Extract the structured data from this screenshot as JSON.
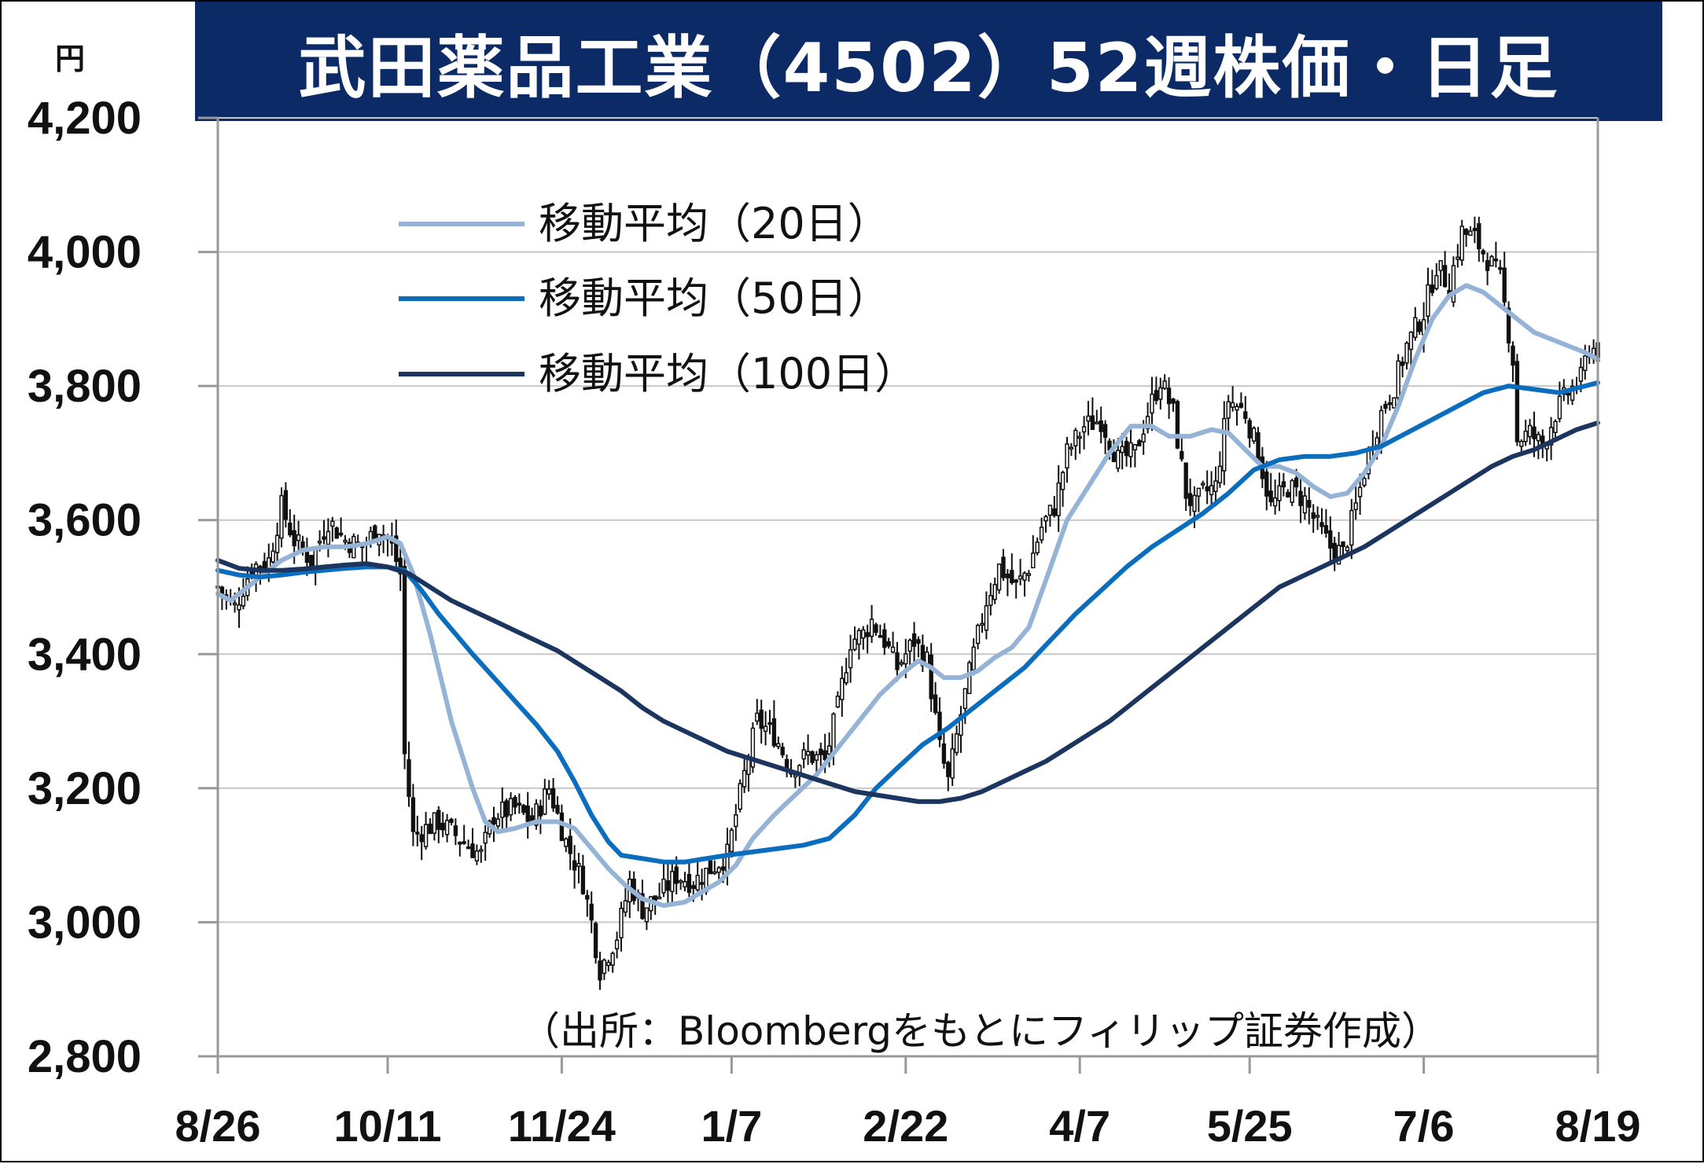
{
  "title": "武田薬品工業（4502）52週株価・日足",
  "chart_data": {
    "type": "candlestick",
    "title": "武田薬品工業（4502）52週株価・日足",
    "unit_label": "円",
    "ylim": [
      2800,
      4200
    ],
    "yticks": [
      2800,
      3000,
      3200,
      3400,
      3600,
      3800,
      4000,
      4200
    ],
    "ytick_labels": [
      "2,800",
      "3,000",
      "3,200",
      "3,400",
      "3,600",
      "3,800",
      "4,000",
      "4,200"
    ],
    "xtick_labels": [
      "8/26",
      "10/11",
      "11/24",
      "1/7",
      "2/22",
      "4/7",
      "5/25",
      "7/6",
      "8/19"
    ],
    "grid": true,
    "source": "（出所：Bloombergをもとにフィリップ証券作成）",
    "colors": {
      "title_bg": "#0c2a66",
      "grid": "#c8c8c8",
      "ma20": "#95b3d7",
      "ma50": "#0b6dbd",
      "ma100": "#1c355e",
      "candle_up": "#ffffff",
      "candle_down": "#111111"
    },
    "close_keypoints": [
      [
        0,
        3500
      ],
      [
        4,
        3470
      ],
      [
        8,
        3530
      ],
      [
        12,
        3540
      ],
      [
        15,
        3620
      ],
      [
        18,
        3570
      ],
      [
        22,
        3540
      ],
      [
        26,
        3600
      ],
      [
        30,
        3570
      ],
      [
        34,
        3560
      ],
      [
        38,
        3590
      ],
      [
        41,
        3560
      ],
      [
        43,
        3520
      ],
      [
        44,
        3250
      ],
      [
        46,
        3130
      ],
      [
        52,
        3150
      ],
      [
        58,
        3120
      ],
      [
        62,
        3100
      ],
      [
        65,
        3160
      ],
      [
        70,
        3170
      ],
      [
        74,
        3150
      ],
      [
        78,
        3200
      ],
      [
        82,
        3120
      ],
      [
        86,
        3060
      ],
      [
        88,
        3000
      ],
      [
        90,
        2930
      ],
      [
        94,
        2980
      ],
      [
        97,
        3060
      ],
      [
        100,
        3020
      ],
      [
        104,
        3040
      ],
      [
        108,
        3070
      ],
      [
        112,
        3060
      ],
      [
        116,
        3080
      ],
      [
        120,
        3100
      ],
      [
        124,
        3220
      ],
      [
        127,
        3300
      ],
      [
        131,
        3280
      ],
      [
        135,
        3230
      ],
      [
        139,
        3250
      ],
      [
        143,
        3240
      ],
      [
        146,
        3320
      ],
      [
        149,
        3420
      ],
      [
        152,
        3430
      ],
      [
        154,
        3450
      ],
      [
        157,
        3420
      ],
      [
        160,
        3380
      ],
      [
        164,
        3420
      ],
      [
        167,
        3390
      ],
      [
        170,
        3260
      ],
      [
        172,
        3210
      ],
      [
        175,
        3310
      ],
      [
        178,
        3400
      ],
      [
        181,
        3480
      ],
      [
        184,
        3530
      ],
      [
        188,
        3500
      ],
      [
        191,
        3530
      ],
      [
        194,
        3590
      ],
      [
        197,
        3620
      ],
      [
        200,
        3700
      ],
      [
        204,
        3740
      ],
      [
        208,
        3750
      ],
      [
        212,
        3690
      ],
      [
        216,
        3700
      ],
      [
        219,
        3760
      ],
      [
        222,
        3810
      ],
      [
        225,
        3760
      ],
      [
        228,
        3640
      ],
      [
        230,
        3620
      ],
      [
        232,
        3640
      ],
      [
        235,
        3650
      ],
      [
        238,
        3780
      ],
      [
        242,
        3760
      ],
      [
        245,
        3700
      ],
      [
        248,
        3620
      ],
      [
        252,
        3650
      ],
      [
        256,
        3630
      ],
      [
        259,
        3590
      ],
      [
        262,
        3560
      ],
      [
        265,
        3550
      ],
      [
        268,
        3620
      ],
      [
        271,
        3700
      ],
      [
        274,
        3760
      ],
      [
        277,
        3800
      ],
      [
        280,
        3860
      ],
      [
        284,
        3910
      ],
      [
        287,
        3980
      ],
      [
        290,
        3950
      ],
      [
        293,
        4030
      ],
      [
        296,
        4020
      ],
      [
        299,
        3990
      ],
      [
        302,
        3960
      ],
      [
        305,
        3840
      ],
      [
        306,
        3720
      ],
      [
        309,
        3730
      ],
      [
        312,
        3710
      ],
      [
        315,
        3760
      ],
      [
        318,
        3790
      ],
      [
        321,
        3810
      ],
      [
        323,
        3860
      ],
      [
        325,
        3850
      ]
    ],
    "series": [
      {
        "name": "移動平均（20日）",
        "period": 20,
        "points": [
          [
            0,
            3490
          ],
          [
            3,
            3480
          ],
          [
            7,
            3500
          ],
          [
            11,
            3520
          ],
          [
            15,
            3540
          ],
          [
            20,
            3555
          ],
          [
            25,
            3560
          ],
          [
            30,
            3560
          ],
          [
            35,
            3565
          ],
          [
            40,
            3575
          ],
          [
            43,
            3565
          ],
          [
            46,
            3520
          ],
          [
            50,
            3430
          ],
          [
            55,
            3300
          ],
          [
            60,
            3200
          ],
          [
            63,
            3150
          ],
          [
            66,
            3135
          ],
          [
            70,
            3140
          ],
          [
            75,
            3150
          ],
          [
            80,
            3150
          ],
          [
            84,
            3140
          ],
          [
            88,
            3110
          ],
          [
            92,
            3080
          ],
          [
            96,
            3055
          ],
          [
            100,
            3035
          ],
          [
            105,
            3025
          ],
          [
            110,
            3030
          ],
          [
            114,
            3045
          ],
          [
            118,
            3060
          ],
          [
            122,
            3085
          ],
          [
            126,
            3125
          ],
          [
            131,
            3160
          ],
          [
            136,
            3190
          ],
          [
            141,
            3220
          ],
          [
            146,
            3260
          ],
          [
            151,
            3300
          ],
          [
            156,
            3340
          ],
          [
            161,
            3370
          ],
          [
            165,
            3390
          ],
          [
            168,
            3380
          ],
          [
            171,
            3365
          ],
          [
            175,
            3365
          ],
          [
            179,
            3375
          ],
          [
            183,
            3395
          ],
          [
            187,
            3410
          ],
          [
            191,
            3440
          ],
          [
            195,
            3510
          ],
          [
            200,
            3600
          ],
          [
            205,
            3650
          ],
          [
            210,
            3700
          ],
          [
            215,
            3740
          ],
          [
            220,
            3740
          ],
          [
            224,
            3725
          ],
          [
            229,
            3725
          ],
          [
            234,
            3735
          ],
          [
            238,
            3730
          ],
          [
            242,
            3705
          ],
          [
            246,
            3680
          ],
          [
            250,
            3680
          ],
          [
            254,
            3670
          ],
          [
            258,
            3650
          ],
          [
            262,
            3635
          ],
          [
            266,
            3640
          ],
          [
            270,
            3670
          ],
          [
            274,
            3710
          ],
          [
            278,
            3770
          ],
          [
            282,
            3840
          ],
          [
            286,
            3900
          ],
          [
            290,
            3935
          ],
          [
            294,
            3950
          ],
          [
            298,
            3940
          ],
          [
            302,
            3920
          ],
          [
            306,
            3900
          ],
          [
            310,
            3880
          ],
          [
            314,
            3870
          ],
          [
            318,
            3860
          ],
          [
            322,
            3850
          ],
          [
            325,
            3840
          ]
        ]
      },
      {
        "name": "移動平均（50日）",
        "period": 50,
        "points": [
          [
            0,
            3525
          ],
          [
            5,
            3518
          ],
          [
            10,
            3515
          ],
          [
            15,
            3518
          ],
          [
            20,
            3522
          ],
          [
            25,
            3525
          ],
          [
            30,
            3528
          ],
          [
            35,
            3530
          ],
          [
            40,
            3530
          ],
          [
            44,
            3525
          ],
          [
            48,
            3495
          ],
          [
            52,
            3460
          ],
          [
            56,
            3430
          ],
          [
            60,
            3400
          ],
          [
            65,
            3365
          ],
          [
            70,
            3330
          ],
          [
            75,
            3295
          ],
          [
            80,
            3255
          ],
          [
            84,
            3210
          ],
          [
            88,
            3160
          ],
          [
            92,
            3120
          ],
          [
            95,
            3100
          ],
          [
            100,
            3095
          ],
          [
            105,
            3090
          ],
          [
            110,
            3090
          ],
          [
            115,
            3095
          ],
          [
            120,
            3100
          ],
          [
            126,
            3105
          ],
          [
            132,
            3110
          ],
          [
            138,
            3115
          ],
          [
            144,
            3125
          ],
          [
            150,
            3160
          ],
          [
            155,
            3200
          ],
          [
            160,
            3230
          ],
          [
            166,
            3265
          ],
          [
            172,
            3290
          ],
          [
            178,
            3320
          ],
          [
            184,
            3350
          ],
          [
            190,
            3380
          ],
          [
            196,
            3420
          ],
          [
            202,
            3460
          ],
          [
            208,
            3495
          ],
          [
            214,
            3530
          ],
          [
            220,
            3560
          ],
          [
            226,
            3585
          ],
          [
            232,
            3610
          ],
          [
            238,
            3640
          ],
          [
            244,
            3675
          ],
          [
            250,
            3690
          ],
          [
            256,
            3695
          ],
          [
            262,
            3695
          ],
          [
            268,
            3700
          ],
          [
            274,
            3710
          ],
          [
            280,
            3730
          ],
          [
            286,
            3750
          ],
          [
            292,
            3770
          ],
          [
            298,
            3790
          ],
          [
            304,
            3800
          ],
          [
            310,
            3795
          ],
          [
            316,
            3790
          ],
          [
            322,
            3800
          ],
          [
            325,
            3805
          ]
        ]
      },
      {
        "name": "移動平均（100日）",
        "period": 100,
        "points": [
          [
            0,
            3540
          ],
          [
            5,
            3528
          ],
          [
            10,
            3525
          ],
          [
            15,
            3525
          ],
          [
            20,
            3527
          ],
          [
            25,
            3530
          ],
          [
            30,
            3533
          ],
          [
            35,
            3535
          ],
          [
            40,
            3530
          ],
          [
            45,
            3520
          ],
          [
            50,
            3500
          ],
          [
            55,
            3480
          ],
          [
            60,
            3465
          ],
          [
            65,
            3450
          ],
          [
            70,
            3435
          ],
          [
            75,
            3420
          ],
          [
            80,
            3405
          ],
          [
            85,
            3385
          ],
          [
            90,
            3365
          ],
          [
            95,
            3345
          ],
          [
            100,
            3320
          ],
          [
            105,
            3300
          ],
          [
            110,
            3285
          ],
          [
            115,
            3270
          ],
          [
            120,
            3255
          ],
          [
            125,
            3245
          ],
          [
            130,
            3235
          ],
          [
            135,
            3225
          ],
          [
            140,
            3215
          ],
          [
            145,
            3205
          ],
          [
            150,
            3195
          ],
          [
            155,
            3190
          ],
          [
            160,
            3185
          ],
          [
            165,
            3180
          ],
          [
            170,
            3180
          ],
          [
            175,
            3185
          ],
          [
            180,
            3195
          ],
          [
            185,
            3210
          ],
          [
            190,
            3225
          ],
          [
            195,
            3240
          ],
          [
            200,
            3260
          ],
          [
            205,
            3280
          ],
          [
            210,
            3300
          ],
          [
            215,
            3325
          ],
          [
            220,
            3350
          ],
          [
            225,
            3375
          ],
          [
            230,
            3400
          ],
          [
            235,
            3425
          ],
          [
            240,
            3450
          ],
          [
            245,
            3475
          ],
          [
            250,
            3500
          ],
          [
            255,
            3515
          ],
          [
            260,
            3530
          ],
          [
            265,
            3545
          ],
          [
            270,
            3560
          ],
          [
            275,
            3580
          ],
          [
            280,
            3600
          ],
          [
            285,
            3620
          ],
          [
            290,
            3640
          ],
          [
            295,
            3660
          ],
          [
            300,
            3680
          ],
          [
            305,
            3695
          ],
          [
            310,
            3705
          ],
          [
            315,
            3720
          ],
          [
            320,
            3735
          ],
          [
            325,
            3745
          ]
        ]
      }
    ],
    "n_days": 326,
    "xtick_day_index": [
      0,
      40,
      81,
      121,
      162,
      203,
      243,
      284,
      325
    ]
  }
}
